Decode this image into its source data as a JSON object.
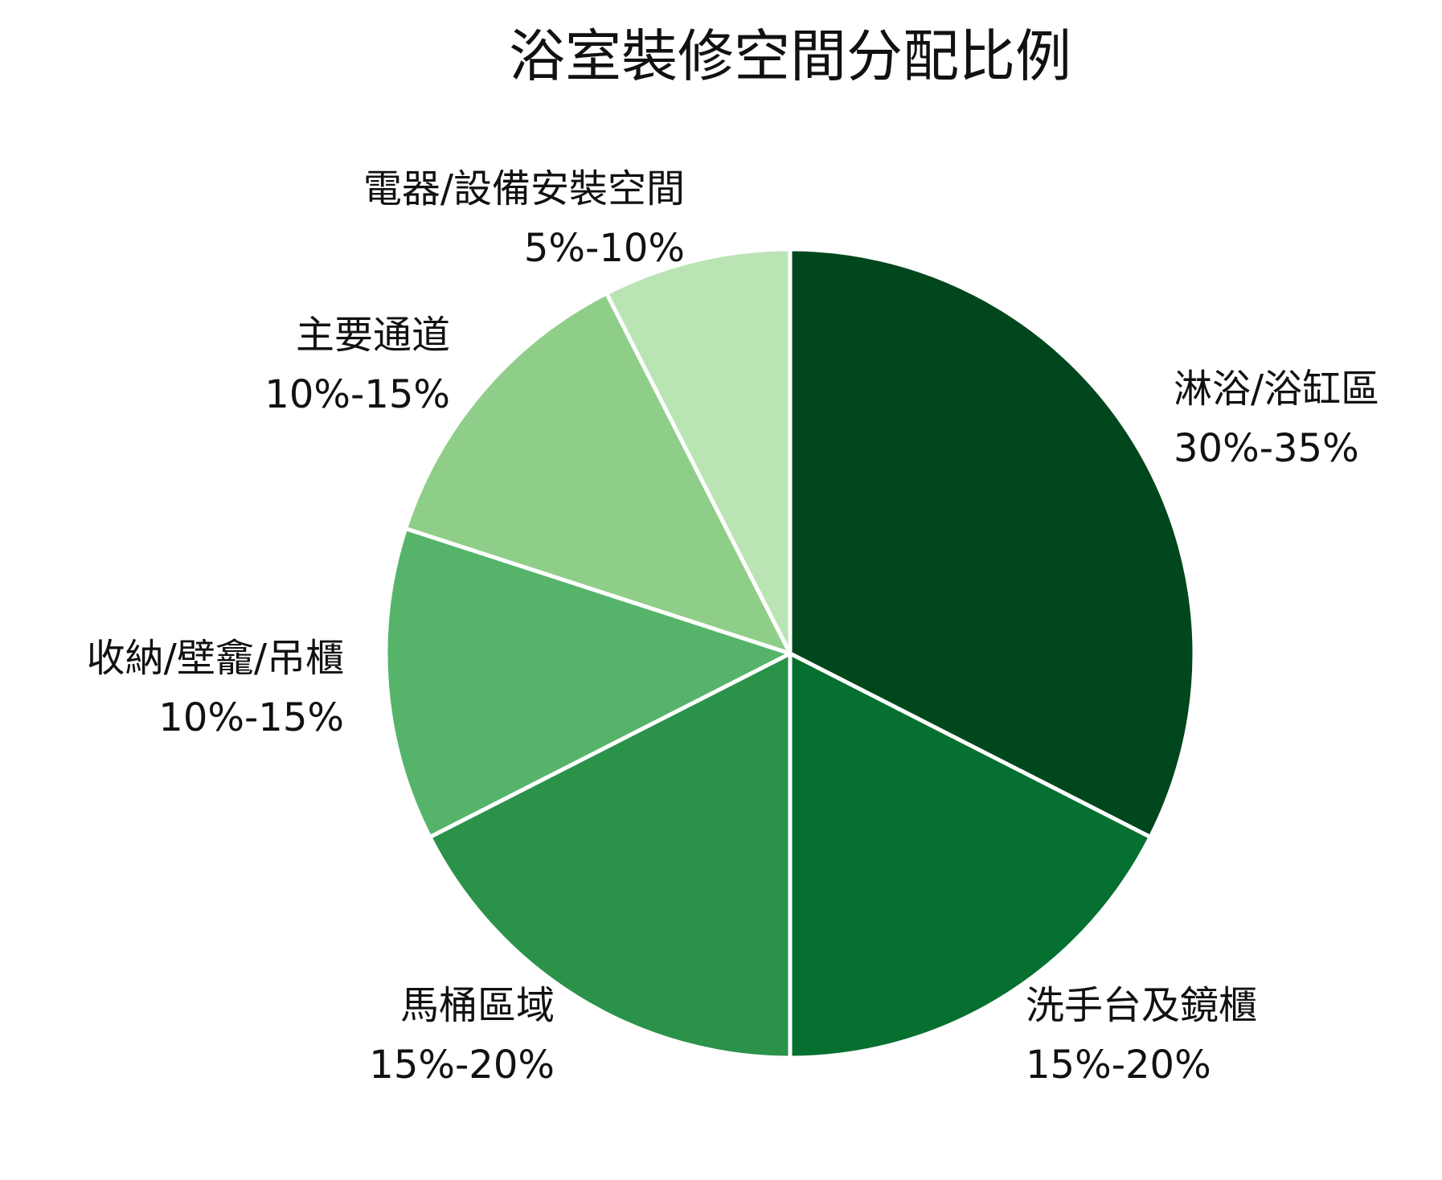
{
  "chart_data": {
    "type": "pie",
    "title": "浴室裝修空間分配比例",
    "slices": [
      {
        "name": "淋浴/浴缸區",
        "range": "30%-35%",
        "value": 0.325,
        "color": "#00471e"
      },
      {
        "name": "洗手台及鏡櫃",
        "range": "15%-20%",
        "value": 0.175,
        "color": "#067030"
      },
      {
        "name": "馬桶區域",
        "range": "15%-20%",
        "value": 0.175,
        "color": "#2b924a"
      },
      {
        "name": "收納/壁龕/吊櫃",
        "range": "10%-15%",
        "value": 0.125,
        "color": "#55b46a"
      },
      {
        "name": "主要通道",
        "range": "10%-15%",
        "value": 0.125,
        "color": "#8fce89"
      },
      {
        "name": "電器/設備安裝空間",
        "range": "5%-10%",
        "value": 0.075,
        "color": "#bae4b4"
      }
    ],
    "start_angle": "12 o'clock",
    "direction": "clockwise",
    "legend": "none",
    "labels": "outside"
  }
}
